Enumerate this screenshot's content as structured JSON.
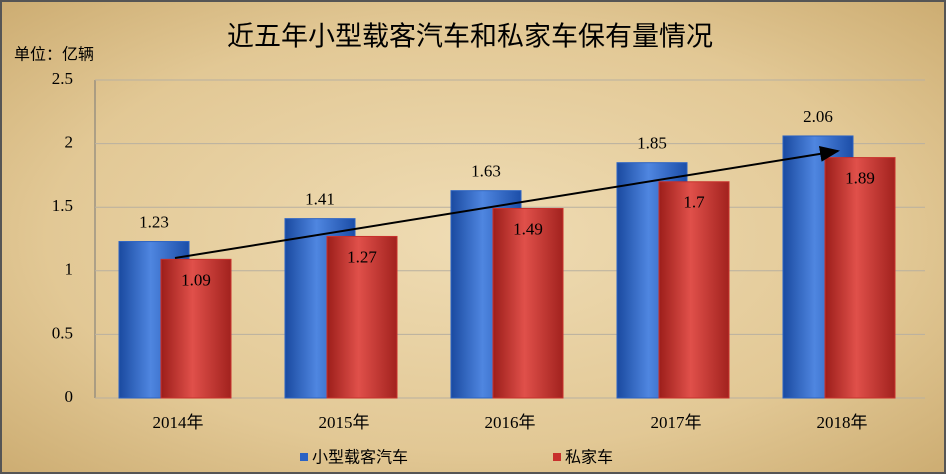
{
  "chart_data": {
    "type": "bar",
    "title": "近五年小型载客汽车和私家车保有量情况",
    "y_label": "单位：亿辆",
    "categories": [
      "2014年",
      "2015年",
      "2016年",
      "2017年",
      "2018年"
    ],
    "series": [
      {
        "name": "小型载客汽车",
        "color": "#2a62c4",
        "values": [
          1.23,
          1.41,
          1.63,
          1.85,
          2.06
        ]
      },
      {
        "name": "私家车",
        "color": "#c8302c",
        "values": [
          1.09,
          1.27,
          1.49,
          1.7,
          1.89
        ]
      }
    ],
    "ylim": [
      0,
      2.5
    ],
    "yticks": [
      0,
      0.5,
      1,
      1.5,
      2,
      2.5
    ],
    "grid": true
  }
}
